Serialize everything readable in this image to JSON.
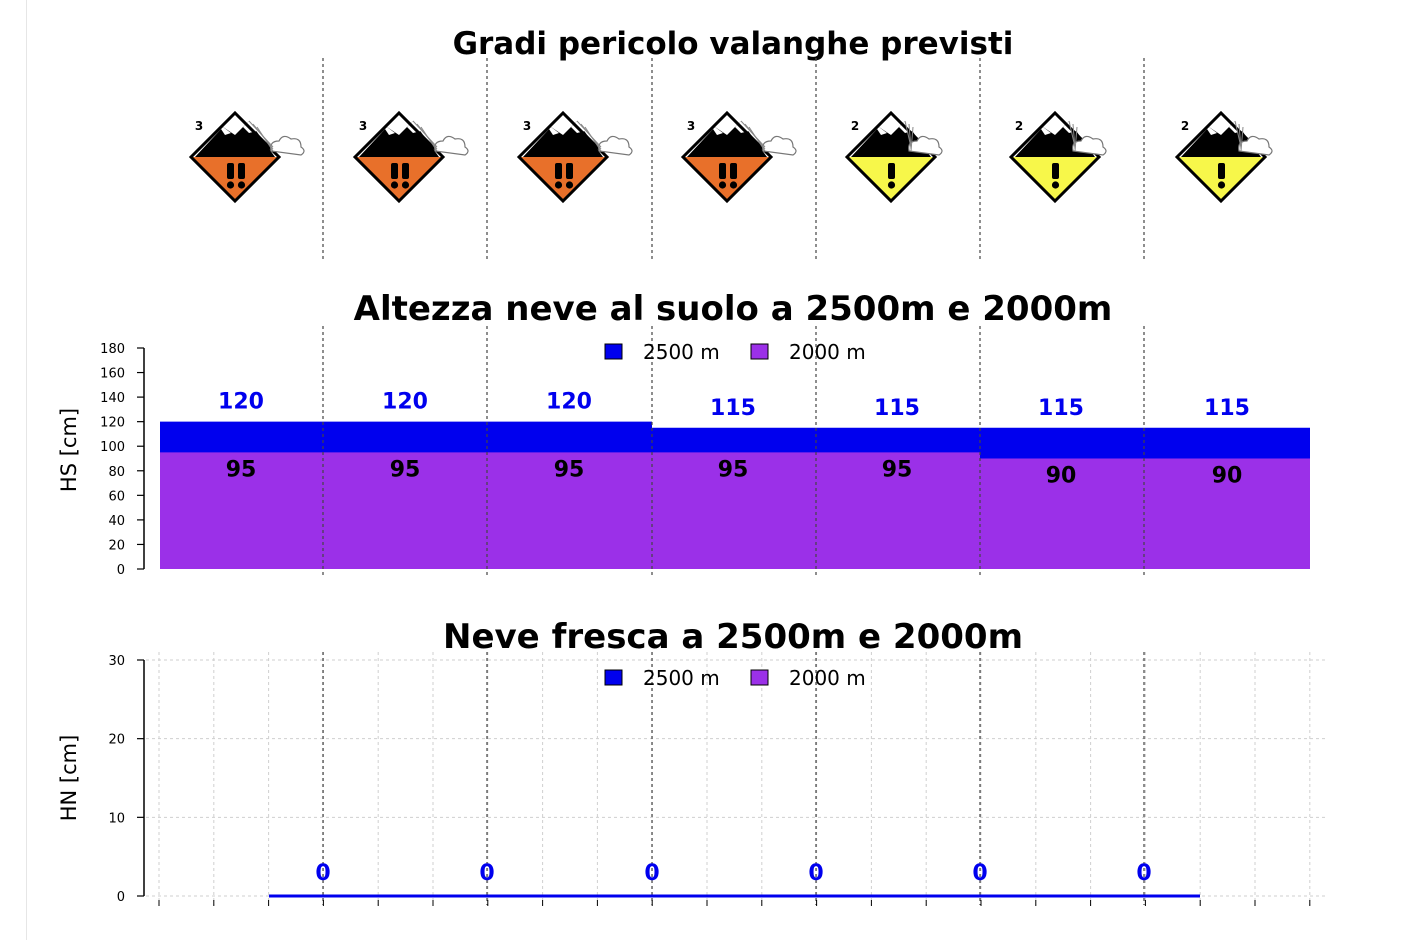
{
  "colors": {
    "series_2500": "#0000ee",
    "series_2000": "#9b30e8",
    "danger_3": "#e8702a",
    "danger_2": "#f7f74a"
  },
  "chart_data": [
    {
      "type": "icons",
      "title": "Gradi pericolo valanghe previsti",
      "danger_levels": [
        3,
        3,
        3,
        3,
        2,
        2,
        2
      ],
      "icon_names": [
        "avalanche-danger-3-icon",
        "avalanche-danger-3-icon",
        "avalanche-danger-3-icon",
        "avalanche-danger-3-icon",
        "avalanche-danger-2-icon",
        "avalanche-danger-2-icon",
        "avalanche-danger-2-icon"
      ]
    },
    {
      "type": "area",
      "title": "Altezza neve al suolo a 2500m e 2000m",
      "ylabel": "HS [cm]",
      "ylim": [
        0,
        180
      ],
      "yticks": [
        0,
        20,
        40,
        60,
        80,
        100,
        120,
        140,
        160,
        180
      ],
      "legend": [
        "2500 m",
        "2000 m"
      ],
      "legend_position": "top-center",
      "series": [
        {
          "name": "2500 m",
          "values": [
            120,
            120,
            120,
            115,
            115,
            115,
            115
          ]
        },
        {
          "name": "2000 m",
          "values": [
            95,
            95,
            95,
            95,
            95,
            90,
            90
          ]
        }
      ],
      "data_labels": {
        "2500 m": [
          "120",
          "120",
          "120",
          "115",
          "115",
          "115",
          "115"
        ],
        "2000 m": [
          "95",
          "95",
          "95",
          "95",
          "95",
          "90",
          "90"
        ]
      }
    },
    {
      "type": "bar",
      "title": "Neve fresca a 2500m e 2000m",
      "ylabel": "HN [cm]",
      "ylim": [
        0,
        30
      ],
      "yticks": [
        0,
        10,
        20,
        30
      ],
      "grid": true,
      "legend": [
        "2500 m",
        "2000 m"
      ],
      "legend_position": "top-center",
      "series": [
        {
          "name": "2500 m",
          "values": [
            0,
            0,
            0,
            0,
            0,
            0
          ]
        },
        {
          "name": "2000 m",
          "values": [
            0,
            0,
            0,
            0,
            0,
            0
          ]
        }
      ],
      "data_labels": [
        "0",
        "0",
        "0",
        "0",
        "0",
        "0"
      ]
    }
  ]
}
